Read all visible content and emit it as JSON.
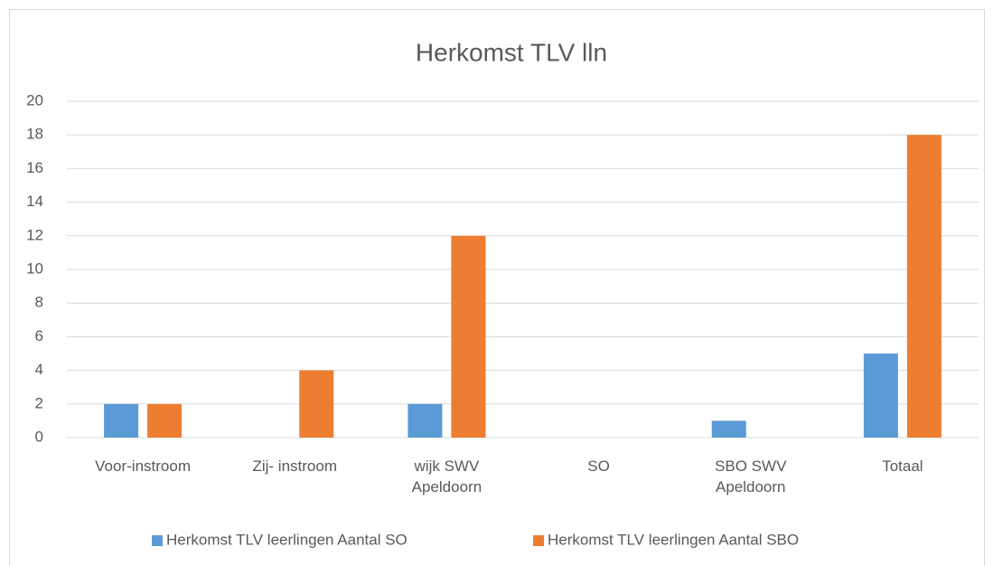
{
  "chart_data": {
    "type": "bar",
    "title": "Herkomst TLV lln",
    "categories": [
      "Voor-instroom",
      "Zij- instroom",
      "wijk SWV Apeldoorn",
      "SO",
      "SBO SWV Apeldoorn",
      "Totaal"
    ],
    "series": [
      {
        "name": "Herkomst TLV leerlingen Aantal SO",
        "color": "#5b9bd5",
        "values": [
          2,
          0,
          2,
          0,
          1,
          5
        ]
      },
      {
        "name": "Herkomst TLV leerlingen Aantal SBO",
        "color": "#ed7d31",
        "values": [
          2,
          4,
          12,
          0,
          0,
          18
        ]
      }
    ],
    "ylim": [
      0,
      20
    ],
    "yticks": [
      0,
      2,
      4,
      6,
      8,
      10,
      12,
      14,
      16,
      18,
      20
    ],
    "grid": true,
    "legend": "bottom"
  }
}
